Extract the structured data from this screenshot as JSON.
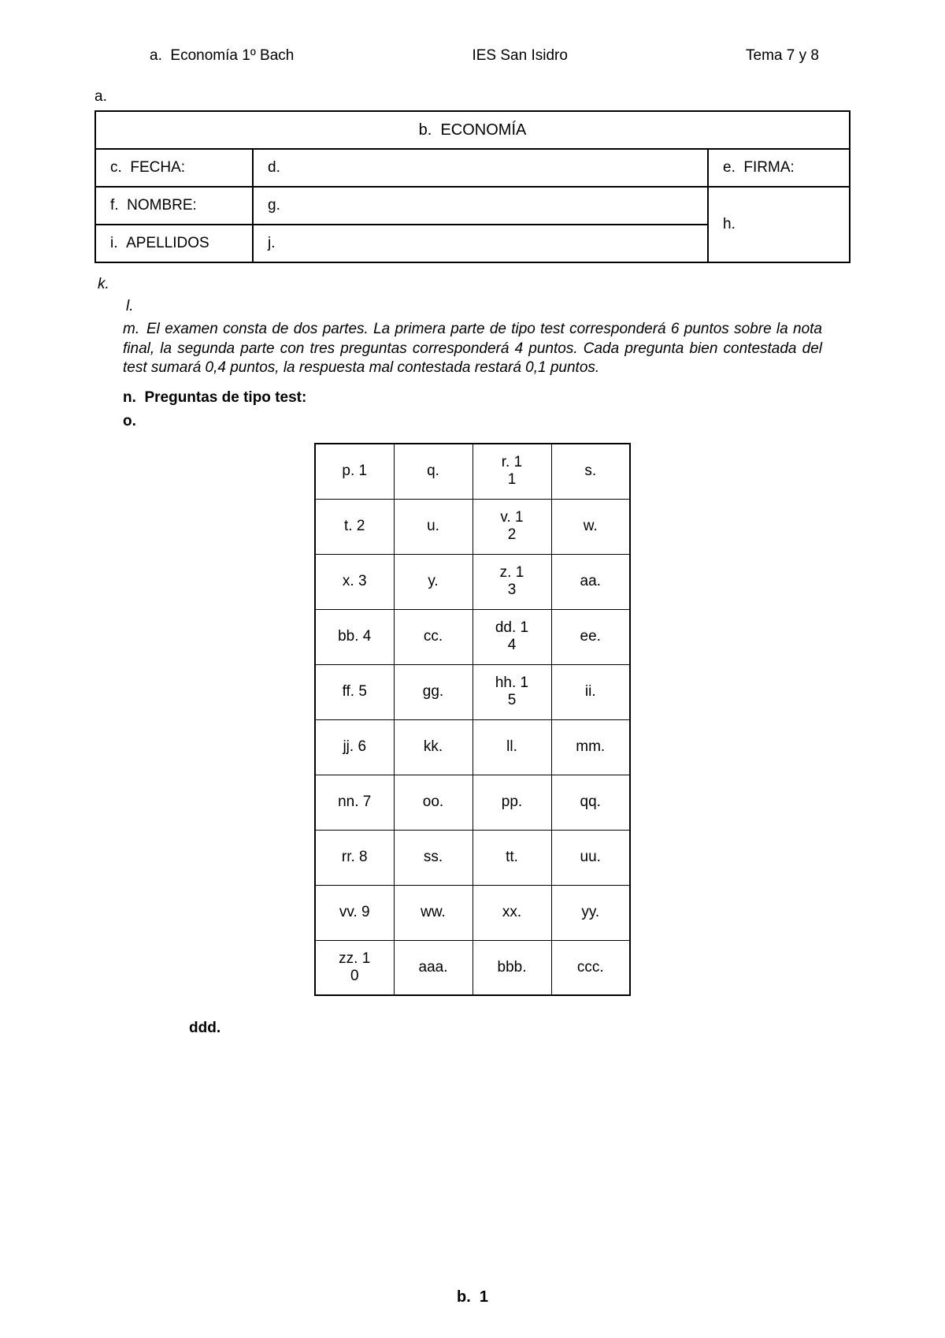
{
  "header": {
    "left_prefix": "a.",
    "left": "Economía 1º Bach",
    "center": "IES San Isidro",
    "right": "Tema 7 y 8"
  },
  "top_list_marker": "a.",
  "form": {
    "title_prefix": "b.",
    "title": "ECONOMÍA",
    "fecha_prefix": "c.",
    "fecha_label": "FECHA:",
    "fecha_value_prefix": "d.",
    "firma_prefix": "e.",
    "firma_label": "FIRMA:",
    "nombre_prefix": "f.",
    "nombre_label": "NOMBRE:",
    "nombre_value_prefix": "g.",
    "firma_blank_prefix": "h.",
    "apellidos_prefix": "i.",
    "apellidos_label": "APELLIDOS",
    "apellidos_value_prefix": "j."
  },
  "k_marker": "k.",
  "l_marker": "l.",
  "instructions_prefix": "m.",
  "instructions_text": "El examen consta de dos partes. La primera parte de tipo test corresponderá 6 puntos sobre la nota final, la segunda parte con tres preguntas corresponderá 4 puntos. Cada pregunta bien contestada del test sumará 0,4 puntos, la respuesta mal contestada restará 0,1 puntos.",
  "section_prefix": "n.",
  "section_title": "Preguntas de tipo test:",
  "o_marker": "o.",
  "answer_grid": {
    "rows": [
      [
        {
          "p": "p.",
          "n": "1"
        },
        {
          "p": "q."
        },
        {
          "p": "r.",
          "n": "11"
        },
        {
          "p": "s."
        }
      ],
      [
        {
          "p": "t.",
          "n": "2"
        },
        {
          "p": "u."
        },
        {
          "p": "v.",
          "n": "12"
        },
        {
          "p": "w."
        }
      ],
      [
        {
          "p": "x.",
          "n": "3"
        },
        {
          "p": "y."
        },
        {
          "p": "z.",
          "n": "13"
        },
        {
          "p": "aa."
        }
      ],
      [
        {
          "p": "bb.",
          "n": "4"
        },
        {
          "p": "cc."
        },
        {
          "p": "dd.",
          "n": "14"
        },
        {
          "p": "ee."
        }
      ],
      [
        {
          "p": "ff.",
          "n": "5"
        },
        {
          "p": "gg."
        },
        {
          "p": "hh.",
          "n": "15"
        },
        {
          "p": "ii."
        }
      ],
      [
        {
          "p": "jj.",
          "n": "6"
        },
        {
          "p": "kk."
        },
        {
          "p": "ll."
        },
        {
          "p": "mm."
        }
      ],
      [
        {
          "p": "nn.",
          "n": "7"
        },
        {
          "p": "oo."
        },
        {
          "p": "pp."
        },
        {
          "p": "qq."
        }
      ],
      [
        {
          "p": "rr.",
          "n": "8"
        },
        {
          "p": "ss."
        },
        {
          "p": "tt."
        },
        {
          "p": "uu."
        }
      ],
      [
        {
          "p": "vv.",
          "n": "9"
        },
        {
          "p": "ww."
        },
        {
          "p": "xx."
        },
        {
          "p": "yy."
        }
      ],
      [
        {
          "p": "zz.",
          "n": "10"
        },
        {
          "p": "aaa."
        },
        {
          "p": "bbb."
        },
        {
          "p": "ccc."
        }
      ]
    ]
  },
  "ddd_marker": "ddd.",
  "footer_prefix": "b.",
  "footer_page": "1",
  "colors": {
    "border": "#000000",
    "background": "#ffffff",
    "text": "#000000"
  }
}
